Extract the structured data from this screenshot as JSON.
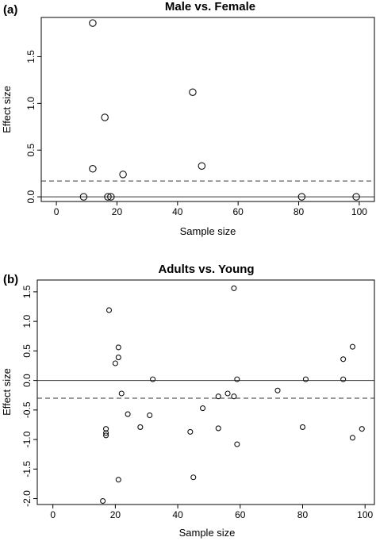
{
  "chart_data": [
    {
      "type": "scatter",
      "panel_label": "(a)",
      "title": "Male vs. Female",
      "xlabel": "Sample size",
      "ylabel": "Effect size",
      "xlim": [
        -5,
        105
      ],
      "ylim": [
        -0.05,
        1.92
      ],
      "xticks": [
        0,
        20,
        40,
        60,
        80,
        100
      ],
      "xtick_labels": [
        "0",
        "20",
        "40",
        "60",
        "80",
        "100"
      ],
      "yticks": [
        0.0,
        0.5,
        1.0,
        1.5
      ],
      "ytick_labels": [
        "0.0",
        "0.5",
        "1.0",
        "1.5"
      ],
      "grid": false,
      "reference_lines": [
        {
          "y": 0.0,
          "style": "solid"
        },
        {
          "y": 0.17,
          "style": "dashed"
        }
      ],
      "point_style": "open-circle-large",
      "points": [
        {
          "x": 12,
          "y": 1.86
        },
        {
          "x": 45,
          "y": 1.12
        },
        {
          "x": 16,
          "y": 0.85
        },
        {
          "x": 48,
          "y": 0.33
        },
        {
          "x": 12,
          "y": 0.3
        },
        {
          "x": 22,
          "y": 0.24
        },
        {
          "x": 9,
          "y": 0.0
        },
        {
          "x": 17,
          "y": 0.0
        },
        {
          "x": 18,
          "y": 0.0
        },
        {
          "x": 81,
          "y": 0.0
        },
        {
          "x": 99,
          "y": 0.0
        }
      ]
    },
    {
      "type": "scatter",
      "panel_label": "(b)",
      "title": "Adults vs. Young",
      "xlabel": "Sample size",
      "ylabel": "Effect size",
      "xlim": [
        -5,
        103
      ],
      "ylim": [
        -2.1,
        1.7
      ],
      "xticks": [
        0,
        20,
        40,
        60,
        80,
        100
      ],
      "xtick_labels": [
        "0",
        "20",
        "40",
        "60",
        "80",
        "100"
      ],
      "yticks": [
        -2.0,
        -1.5,
        -1.0,
        -0.5,
        0.0,
        0.5,
        1.0,
        1.5
      ],
      "ytick_labels": [
        "-2.0",
        "-1.5",
        "-1.0",
        "-0.5",
        "0.0",
        "0.5",
        "1.0",
        "1.5"
      ],
      "grid": false,
      "reference_lines": [
        {
          "y": 0.0,
          "style": "solid"
        },
        {
          "y": -0.3,
          "style": "dashed"
        }
      ],
      "point_style": "open-circle-small",
      "points": [
        {
          "x": 58,
          "y": 1.56
        },
        {
          "x": 18,
          "y": 1.19
        },
        {
          "x": 21,
          "y": 0.56
        },
        {
          "x": 96,
          "y": 0.57
        },
        {
          "x": 21,
          "y": 0.39
        },
        {
          "x": 93,
          "y": 0.36
        },
        {
          "x": 20,
          "y": 0.29
        },
        {
          "x": 32,
          "y": 0.02
        },
        {
          "x": 59,
          "y": 0.02
        },
        {
          "x": 81,
          "y": 0.02
        },
        {
          "x": 93,
          "y": 0.02
        },
        {
          "x": 72,
          "y": -0.17
        },
        {
          "x": 22,
          "y": -0.22
        },
        {
          "x": 56,
          "y": -0.22
        },
        {
          "x": 53,
          "y": -0.27
        },
        {
          "x": 58,
          "y": -0.27
        },
        {
          "x": 48,
          "y": -0.47
        },
        {
          "x": 24,
          "y": -0.57
        },
        {
          "x": 31,
          "y": -0.59
        },
        {
          "x": 28,
          "y": -0.79
        },
        {
          "x": 53,
          "y": -0.81
        },
        {
          "x": 80,
          "y": -0.79
        },
        {
          "x": 99,
          "y": -0.82
        },
        {
          "x": 17,
          "y": -0.82
        },
        {
          "x": 44,
          "y": -0.87
        },
        {
          "x": 17,
          "y": -0.89
        },
        {
          "x": 17,
          "y": -0.93
        },
        {
          "x": 96,
          "y": -0.97
        },
        {
          "x": 59,
          "y": -1.08
        },
        {
          "x": 45,
          "y": -1.64
        },
        {
          "x": 21,
          "y": -1.68
        },
        {
          "x": 16,
          "y": -2.04
        }
      ]
    }
  ]
}
